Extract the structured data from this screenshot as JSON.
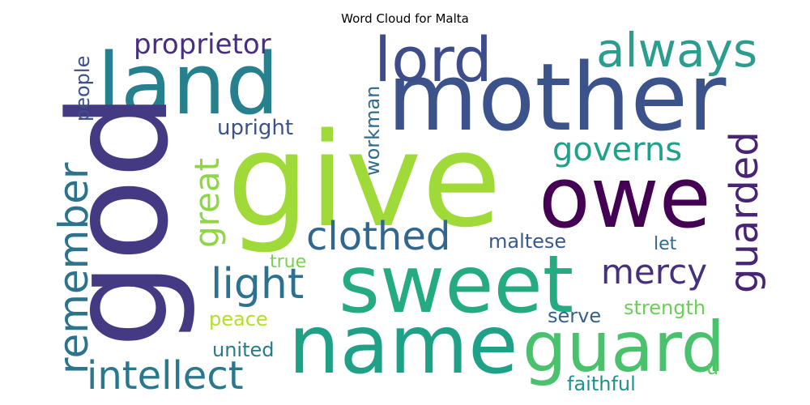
{
  "chart_data": {
    "type": "wordcloud",
    "title": "Word Cloud for Malta",
    "colormap": "viridis",
    "background": "#ffffff",
    "words": [
      {
        "text": "give",
        "color": "#a0da39"
      },
      {
        "text": "mother",
        "color": "#3b528b"
      },
      {
        "text": "land",
        "color": "#27808e"
      },
      {
        "text": "god",
        "color": "#443a83"
      },
      {
        "text": "sweet",
        "color": "#25ab82"
      },
      {
        "text": "name",
        "color": "#1fa187"
      },
      {
        "text": "guard",
        "color": "#4ac16d"
      },
      {
        "text": "owe",
        "color": "#440154"
      },
      {
        "text": "lord",
        "color": "#3e4c8a"
      },
      {
        "text": "always",
        "color": "#2a9d8e"
      },
      {
        "text": "remember",
        "color": "#2c738e"
      },
      {
        "text": "intellect",
        "color": "#2a788e"
      },
      {
        "text": "light",
        "color": "#2c718e"
      },
      {
        "text": "clothed",
        "color": "#31678e"
      },
      {
        "text": "guarded",
        "color": "#482475"
      },
      {
        "text": "mercy",
        "color": "#46307e"
      },
      {
        "text": "governs",
        "color": "#1fa088"
      },
      {
        "text": "great",
        "color": "#8ed645"
      },
      {
        "text": "proprietor",
        "color": "#472f7d"
      },
      {
        "text": "upright",
        "color": "#3b528b"
      },
      {
        "text": "workman",
        "color": "#2f6c8e"
      },
      {
        "text": "people",
        "color": "#3d4e8a"
      },
      {
        "text": "maltese",
        "color": "#38598c"
      },
      {
        "text": "let",
        "color": "#306a8e"
      },
      {
        "text": "true",
        "color": "#7ad151"
      },
      {
        "text": "peace",
        "color": "#b5de2b"
      },
      {
        "text": "strength",
        "color": "#6ccd5a"
      },
      {
        "text": "serve",
        "color": "#33638d"
      },
      {
        "text": "united",
        "color": "#2a788e"
      },
      {
        "text": "faithful",
        "color": "#21918c"
      },
      {
        "text": "u",
        "color": "#5cc863"
      }
    ]
  }
}
